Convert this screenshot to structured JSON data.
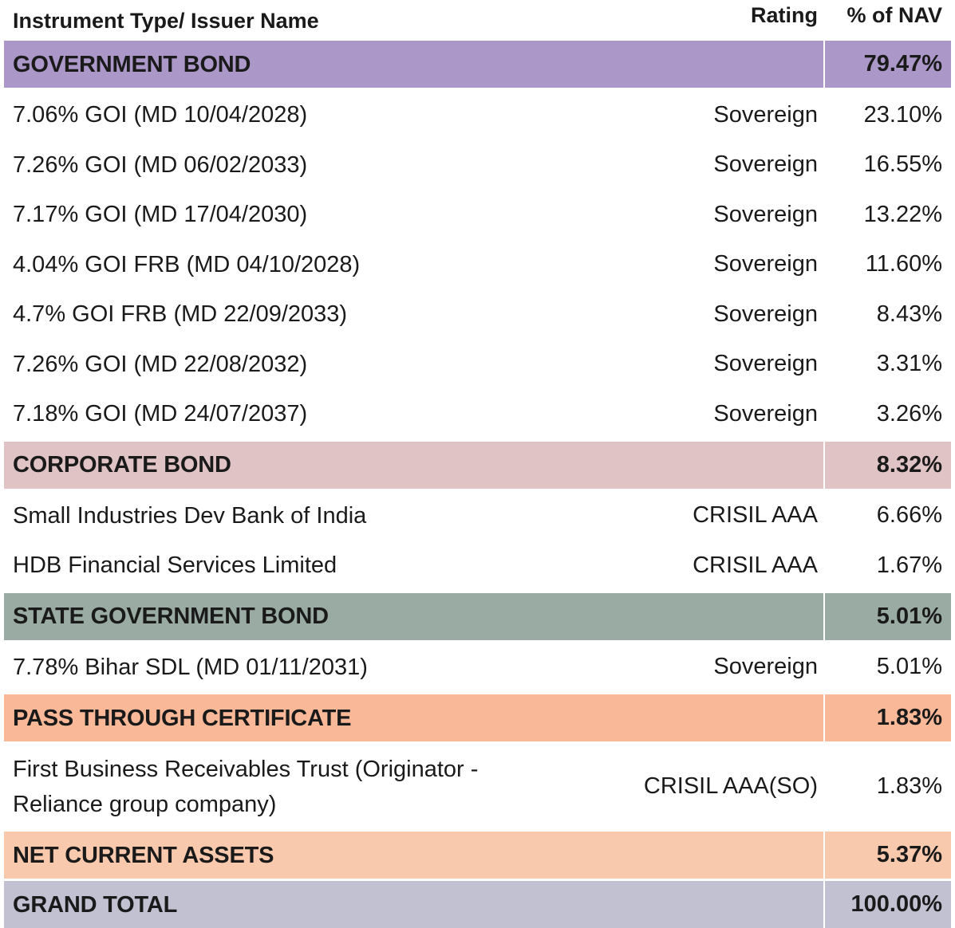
{
  "header": {
    "name": "Instrument Type/ Issuer Name",
    "rating": "Rating",
    "nav": "% of NAV"
  },
  "colors": {
    "government_bond": "#ab98c9",
    "corporate_bond": "#e0c3c5",
    "state_government_bond": "#9aaba4",
    "pass_through_certificate": "#f9b999",
    "net_current_assets": "#f9c9ad",
    "grand_total": "#c2c1d2"
  },
  "sections": [
    {
      "title": "GOVERNMENT BOND",
      "total": "79.47%",
      "items": [
        {
          "name": "7.06% GOI (MD 10/04/2028)",
          "rating": "Sovereign",
          "nav": "23.10%"
        },
        {
          "name": "7.26% GOI (MD 06/02/2033)",
          "rating": "Sovereign",
          "nav": "16.55%"
        },
        {
          "name": "7.17% GOI (MD 17/04/2030)",
          "rating": "Sovereign",
          "nav": "13.22%"
        },
        {
          "name": "4.04% GOI FRB (MD 04/10/2028)",
          "rating": "Sovereign",
          "nav": "11.60%"
        },
        {
          "name": "4.7% GOI FRB (MD 22/09/2033)",
          "rating": "Sovereign",
          "nav": "8.43%"
        },
        {
          "name": "7.26% GOI (MD 22/08/2032)",
          "rating": "Sovereign",
          "nav": "3.31%"
        },
        {
          "name": "7.18% GOI (MD 24/07/2037)",
          "rating": "Sovereign",
          "nav": "3.26%"
        }
      ]
    },
    {
      "title": "CORPORATE BOND",
      "total": "8.32%",
      "items": [
        {
          "name": "Small Industries Dev Bank of India",
          "rating": "CRISIL AAA",
          "nav": "6.66%"
        },
        {
          "name": "HDB Financial Services Limited",
          "rating": "CRISIL AAA",
          "nav": "1.67%"
        }
      ]
    },
    {
      "title": "STATE GOVERNMENT BOND",
      "total": "5.01%",
      "items": [
        {
          "name": "7.78% Bihar SDL (MD 01/11/2031)",
          "rating": "Sovereign",
          "nav": "5.01%"
        }
      ]
    },
    {
      "title": "PASS THROUGH CERTIFICATE",
      "total": "1.83%",
      "items": [
        {
          "name_line1": "First Business Receivables Trust (Originator -",
          "name_line2": "Reliance group company)",
          "rating": "CRISIL AAA(SO)",
          "nav": "1.83%"
        }
      ]
    }
  ],
  "net_current_assets": {
    "title": "NET CURRENT ASSETS",
    "total": "5.37%"
  },
  "grand_total": {
    "title": "GRAND TOTAL",
    "total": "100.00%"
  }
}
